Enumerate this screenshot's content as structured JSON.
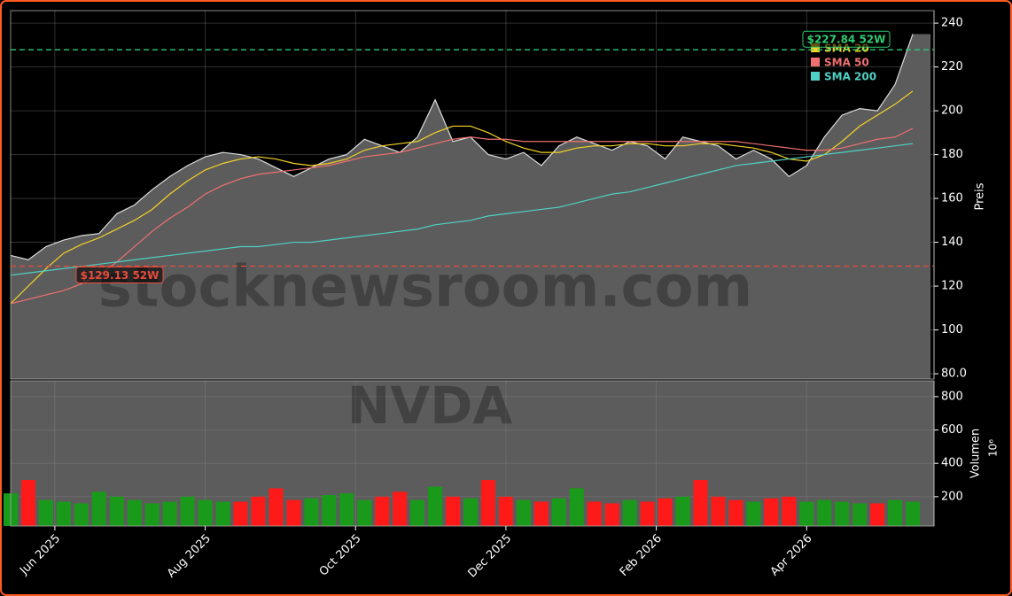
{
  "chart_data": [
    {
      "type": "area",
      "watermark": "stocknewsroom.com",
      "ylabel": "Preis",
      "color": "#5c5c5c",
      "line_color": "#dddddd",
      "xlim": [
        0,
        52.2
      ],
      "ylim": [
        77.6,
        245.7
      ],
      "yticks": [
        {
          "value": 80,
          "label": "80.0"
        },
        100,
        120,
        140,
        160,
        180,
        200,
        220,
        240
      ],
      "grid": true,
      "values": [
        134,
        132,
        138,
        141,
        143,
        144,
        153,
        157,
        164,
        170,
        175,
        179,
        181,
        180,
        178,
        174,
        170,
        174,
        178,
        180,
        187,
        184,
        181,
        188,
        205,
        186,
        188,
        180,
        178,
        181,
        175,
        184,
        188,
        185,
        182,
        186,
        184,
        178,
        188,
        186,
        184,
        178,
        182,
        178,
        170,
        175,
        188,
        198,
        201,
        200,
        212,
        235
      ],
      "series": [
        {
          "name": "SMA 20",
          "color": "#f5d327",
          "values": [
            112,
            120,
            128,
            135,
            139,
            142,
            146,
            150,
            155,
            162,
            168,
            173,
            176,
            178,
            179,
            178,
            176,
            175,
            176,
            178,
            182,
            184,
            185,
            186,
            190,
            193,
            193,
            190,
            186,
            183,
            181,
            181,
            183,
            184,
            184,
            185,
            185,
            184,
            184,
            185,
            185,
            184,
            183,
            181,
            178,
            177,
            180,
            186,
            193,
            198,
            203,
            209
          ]
        },
        {
          "name": "SMA 50",
          "color": "#f07070",
          "values": [
            112,
            114,
            116,
            118,
            121,
            125,
            131,
            138,
            145,
            151,
            156,
            162,
            166,
            169,
            171,
            172,
            173,
            174,
            175,
            177,
            179,
            180,
            181,
            183,
            185,
            187,
            188,
            187,
            187,
            186,
            186,
            186,
            186,
            186,
            186,
            186,
            186,
            186,
            186,
            186,
            186,
            186,
            185,
            184,
            183,
            182,
            182,
            183,
            185,
            187,
            188,
            192
          ]
        },
        {
          "name": "SMA 200",
          "color": "#4fd1c5",
          "values": [
            125,
            126,
            127,
            128,
            129,
            130,
            131,
            132,
            133,
            134,
            135,
            136,
            137,
            138,
            138,
            139,
            140,
            140,
            141,
            142,
            143,
            144,
            145,
            146,
            148,
            149,
            150,
            152,
            153,
            154,
            155,
            156,
            158,
            160,
            162,
            163,
            165,
            167,
            169,
            171,
            173,
            175,
            176,
            177,
            178,
            179,
            180,
            181,
            182,
            183,
            184,
            185
          ]
        }
      ],
      "annotations": [
        {
          "text": "$227.84 52W",
          "value": 227.84,
          "color": "#2ecc71"
        },
        {
          "text": "$129.13 52W",
          "value": 129.13,
          "color": "#e74c3c"
        }
      ]
    },
    {
      "type": "bar",
      "watermark": "NVDA",
      "ylabel": "Volumen",
      "offset_label": "10⁶",
      "up_color": "#1a9a1a",
      "down_color": "#ff1a1a",
      "xlim": [
        0,
        52.2
      ],
      "ylim": [
        24,
        895
      ],
      "yticks": [
        200,
        400,
        600,
        800
      ],
      "grid": true,
      "values": [
        220,
        300,
        180,
        170,
        160,
        230,
        200,
        180,
        160,
        170,
        200,
        180,
        170,
        170,
        200,
        250,
        180,
        190,
        210,
        220,
        180,
        200,
        230,
        180,
        260,
        200,
        190,
        300,
        200,
        180,
        170,
        190,
        250,
        170,
        160,
        180,
        170,
        190,
        200,
        300,
        200,
        180,
        170,
        190,
        200,
        170,
        180,
        170,
        160,
        160,
        180,
        170
      ],
      "xticks": [
        {
          "value": 2.5,
          "label": "Jun 2025"
        },
        {
          "value": 11,
          "label": "Aug 2025"
        },
        {
          "value": 19.5,
          "label": "Oct 2025"
        },
        {
          "value": 28,
          "label": "Dec 2025"
        },
        {
          "value": 36.5,
          "label": "Feb 2026"
        },
        {
          "value": 45,
          "label": "Apr 2026"
        }
      ]
    }
  ]
}
